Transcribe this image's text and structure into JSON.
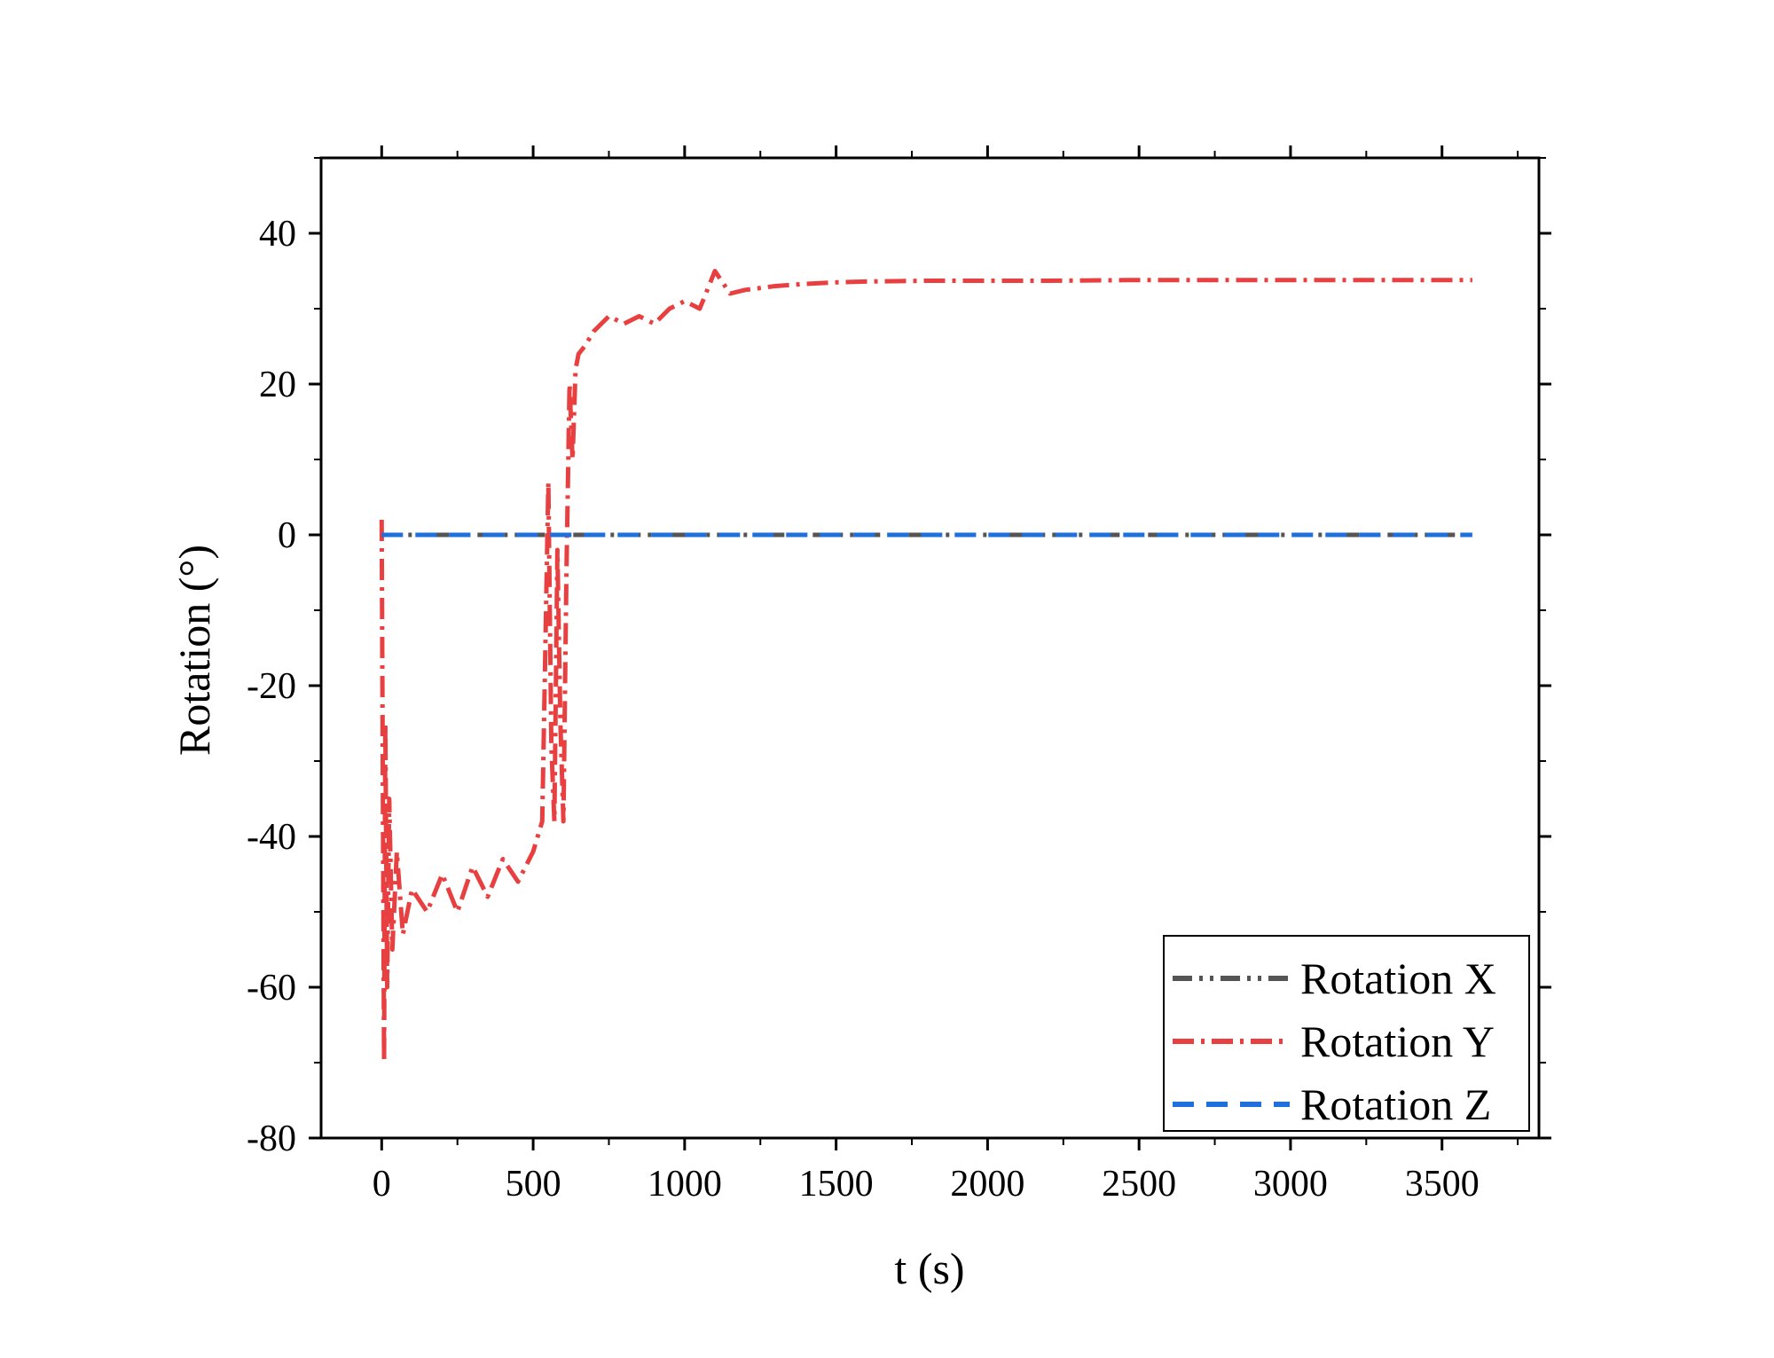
{
  "chart_data": {
    "type": "line",
    "title": "",
    "xlabel": "t (s)",
    "ylabel": "Rotation (°)",
    "xlim": [
      -200,
      3820
    ],
    "ylim": [
      -80,
      50
    ],
    "xticks": [
      0,
      500,
      1000,
      1500,
      2000,
      2500,
      3000,
      3500
    ],
    "yticks": [
      -80,
      -60,
      -40,
      -20,
      0,
      20,
      40
    ],
    "xtick_labels": [
      "0",
      "500",
      "1000",
      "1500",
      "2000",
      "2500",
      "3000",
      "3500"
    ],
    "ytick_labels": [
      "-80",
      "-60",
      "-40",
      "-20",
      "0",
      "20",
      "40"
    ],
    "grid": false,
    "legend_position": "bottom-right",
    "series": [
      {
        "name": "Rotation X",
        "color": "#555555",
        "style": "dash-dot-dot",
        "x": [
          0,
          3600
        ],
        "y": [
          0,
          0
        ]
      },
      {
        "name": "Rotation Y",
        "color": "#e84040",
        "style": "dash-dot",
        "x": [
          0,
          8,
          12,
          18,
          25,
          35,
          50,
          70,
          100,
          150,
          200,
          250,
          300,
          350,
          400,
          450,
          500,
          530,
          550,
          560,
          570,
          580,
          590,
          600,
          610,
          620,
          630,
          640,
          650,
          670,
          700,
          750,
          800,
          850,
          900,
          950,
          1000,
          1050,
          1100,
          1150,
          1200,
          1300,
          1400,
          1500,
          1600,
          1800,
          2000,
          2200,
          2500,
          2800,
          3000,
          3200,
          3400,
          3600
        ],
        "y": [
          2,
          -70,
          -25,
          -60,
          -35,
          -55,
          -42,
          -53,
          -47,
          -50,
          -45,
          -50,
          -44,
          -48,
          -43,
          -46,
          -42,
          -38,
          7,
          -28,
          -38,
          -2,
          -25,
          -38,
          -5,
          20,
          10,
          22,
          24,
          25,
          27,
          29,
          28,
          29,
          28,
          30,
          31,
          30,
          35,
          32,
          32.5,
          33,
          33.3,
          33.5,
          33.6,
          33.7,
          33.7,
          33.7,
          33.8,
          33.8,
          33.8,
          33.8,
          33.8,
          33.8
        ]
      },
      {
        "name": "Rotation Z",
        "color": "#1f6fdc",
        "style": "dash",
        "x": [
          0,
          3600
        ],
        "y": [
          0,
          0
        ]
      }
    ]
  }
}
